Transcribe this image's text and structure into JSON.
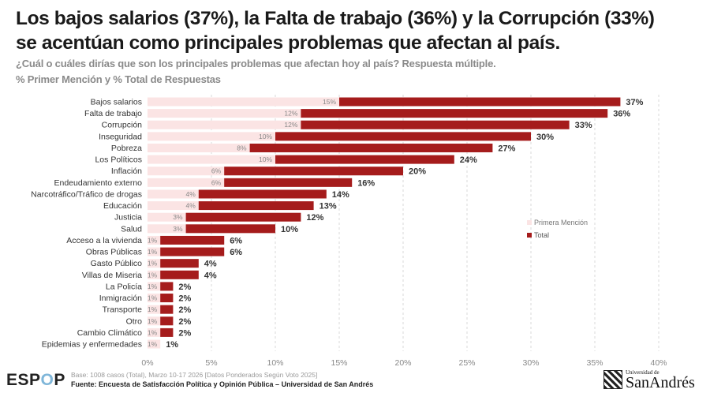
{
  "header": {
    "title_line1": "Los bajos salarios (37%), la Falta de trabajo (36%) y la Corrupción (33%)",
    "title_line2": "se acentúan como principales problemas que afectan al país.",
    "question": "¿Cuál o cuáles dirías que son los principales problemas que afectan hoy al país? Respuesta múltiple.",
    "measure": "% Primer Mención y % Total de Respuestas"
  },
  "chart_data": {
    "type": "bar",
    "orientation": "horizontal",
    "categories": [
      "Bajos salarios",
      "Falta de trabajo",
      "Corrupción",
      "Inseguridad",
      "Pobreza",
      "Los Políticos",
      "Inflación",
      "Endeudamiento externo",
      "Narcotráfico/Tráfico de drogas",
      "Educación",
      "Justicia",
      "Salud",
      "Acceso a la vivienda",
      "Obras Públicas",
      "Gasto Público",
      "Villas de Miseria",
      "La Policía",
      "Inmigración",
      "Transporte",
      "Otro",
      "Cambio Climático",
      "Epidemias y enfermedades"
    ],
    "series": [
      {
        "name": "Primera Mención",
        "color": "#fbe4e4",
        "values": [
          15,
          12,
          12,
          10,
          8,
          10,
          6,
          6,
          4,
          4,
          3,
          3,
          1,
          1,
          1,
          1,
          1,
          1,
          1,
          1,
          1,
          1
        ]
      },
      {
        "name": "Total",
        "color": "#a51c1c",
        "values": [
          37,
          36,
          33,
          30,
          27,
          24,
          20,
          16,
          14,
          13,
          12,
          10,
          6,
          6,
          4,
          4,
          2,
          2,
          2,
          2,
          2,
          1
        ]
      }
    ],
    "xlim": [
      0,
      40
    ],
    "xticks": [
      "0%",
      "5%",
      "10%",
      "15%",
      "20%",
      "25%",
      "30%",
      "35%",
      "40%"
    ],
    "grid": true,
    "legend": "right"
  },
  "footer": {
    "logo": "ESPOP",
    "base": "Base: 1008 casos (Total), Marzo 10-17 2026 [Datos Ponderados Según Voto 2025]",
    "source": "Fuente: Encuesta de Satisfacción Política y Opinión Pública – Universidad de San Andrés",
    "university_small": "Universidad de",
    "university_big": "SanAndrés"
  }
}
